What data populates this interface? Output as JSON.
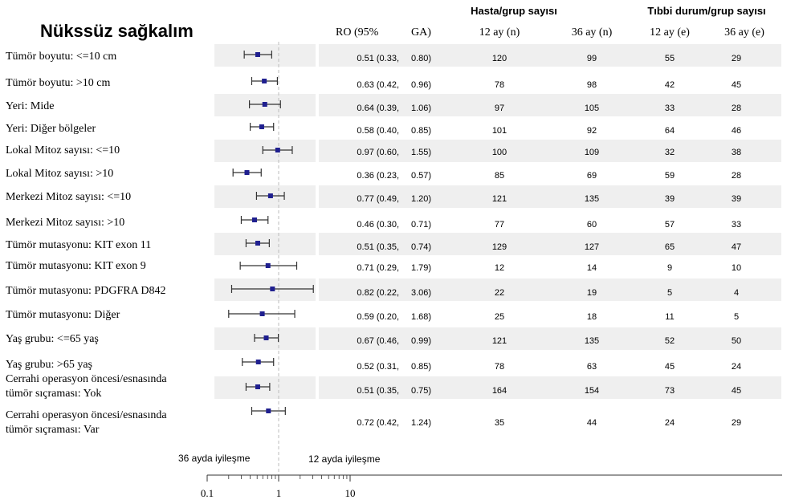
{
  "chart_data": {
    "type": "forest",
    "title": "Nükssüz sağkalım",
    "x_scale": "log",
    "xlim": [
      0.1,
      10
    ],
    "x_ticks": [
      "0.1",
      "1",
      "10"
    ],
    "reference_line": 1,
    "grid": false,
    "annotations": {
      "left": "36 ayda iyileşme",
      "right": "12 ayda iyileşme"
    },
    "headers": {
      "ro": "RO (95%",
      "ga": "GA)",
      "group_hasta": "Hasta/grup sayısı",
      "group_tibbi": "Tıbbi durum/grup sayısı",
      "n12": "12 ay (n)",
      "n36": "36 ay (n)",
      "e12": "12 ay (e)",
      "e36": "36 ay (e)"
    },
    "rows": [
      {
        "label": [
          "Tümör boyutu: <=10 cm"
        ],
        "ro": 0.51,
        "lo": 0.33,
        "hi": 0.8,
        "ro_text": "0.51 (0.33,",
        "hi_text": "0.80)",
        "n12": "120",
        "n36": "99",
        "e12": "55",
        "e36": "29"
      },
      {
        "label": [
          "Tümör boyutu: >10 cm"
        ],
        "ro": 0.63,
        "lo": 0.42,
        "hi": 0.96,
        "ro_text": "0.63 (0.42,",
        "hi_text": "0.96)",
        "n12": "78",
        "n36": "98",
        "e12": "42",
        "e36": "45"
      },
      {
        "label": [
          "Yeri: Mide"
        ],
        "ro": 0.64,
        "lo": 0.39,
        "hi": 1.06,
        "ro_text": "0.64 (0.39,",
        "hi_text": "1.06)",
        "n12": "97",
        "n36": "105",
        "e12": "33",
        "e36": "28"
      },
      {
        "label": [
          "Yeri: Diğer bölgeler"
        ],
        "ro": 0.58,
        "lo": 0.4,
        "hi": 0.85,
        "ro_text": "0.58 (0.40,",
        "hi_text": "0.85)",
        "n12": "101",
        "n36": "92",
        "e12": "64",
        "e36": "46"
      },
      {
        "label": [
          "Lokal Mitoz sayısı: <=10"
        ],
        "ro": 0.97,
        "lo": 0.6,
        "hi": 1.55,
        "ro_text": "0.97 (0.60,",
        "hi_text": "1.55)",
        "n12": "100",
        "n36": "109",
        "e12": "32",
        "e36": "38"
      },
      {
        "label": [
          "Lokal Mitoz sayısı: >10"
        ],
        "ro": 0.36,
        "lo": 0.23,
        "hi": 0.57,
        "ro_text": "0.36 (0.23,",
        "hi_text": "0.57)",
        "n12": "85",
        "n36": "69",
        "e12": "59",
        "e36": "28"
      },
      {
        "label": [
          "Merkezi Mitoz sayısı: <=10"
        ],
        "ro": 0.77,
        "lo": 0.49,
        "hi": 1.2,
        "ro_text": "0.77 (0.49,",
        "hi_text": "1.20)",
        "n12": "121",
        "n36": "135",
        "e12": "39",
        "e36": "39"
      },
      {
        "label": [
          "Merkezi Mitoz sayısı: >10"
        ],
        "ro": 0.46,
        "lo": 0.3,
        "hi": 0.71,
        "ro_text": "0.46 (0.30,",
        "hi_text": "0.71)",
        "n12": "77",
        "n36": "60",
        "e12": "57",
        "e36": "33"
      },
      {
        "label": [
          "Tümör mutasyonu: KIT exon 11"
        ],
        "ro": 0.51,
        "lo": 0.35,
        "hi": 0.74,
        "ro_text": "0.51 (0.35,",
        "hi_text": "0.74)",
        "n12": "129",
        "n36": "127",
        "e12": "65",
        "e36": "47"
      },
      {
        "label": [
          "Tümör mutasyonu: KIT exon 9"
        ],
        "ro": 0.71,
        "lo": 0.29,
        "hi": 1.79,
        "ro_text": "0.71 (0.29,",
        "hi_text": "1.79)",
        "n12": "12",
        "n36": "14",
        "e12": "9",
        "e36": "10"
      },
      {
        "label": [
          "Tümör mutasyonu: PDGFRA D842"
        ],
        "ro": 0.82,
        "lo": 0.22,
        "hi": 3.06,
        "ro_text": "0.82 (0.22,",
        "hi_text": "3.06)",
        "n12": "22",
        "n36": "19",
        "e12": "5",
        "e36": "4"
      },
      {
        "label": [
          "Tümör mutasyonu: Diğer"
        ],
        "ro": 0.59,
        "lo": 0.2,
        "hi": 1.68,
        "ro_text": "0.59 (0.20,",
        "hi_text": "1.68)",
        "n12": "25",
        "n36": "18",
        "e12": "11",
        "e36": "5"
      },
      {
        "label": [
          "Yaş grubu: <=65 yaş"
        ],
        "ro": 0.67,
        "lo": 0.46,
        "hi": 0.99,
        "ro_text": "0.67 (0.46,",
        "hi_text": "0.99)",
        "n12": "121",
        "n36": "135",
        "e12": "52",
        "e36": "50"
      },
      {
        "label": [
          "Yaş grubu: >65 yaş"
        ],
        "ro": 0.52,
        "lo": 0.31,
        "hi": 0.85,
        "ro_text": "0.52 (0.31,",
        "hi_text": "0.85)",
        "n12": "78",
        "n36": "63",
        "e12": "45",
        "e36": "24"
      },
      {
        "label": [
          "Cerrahi operasyon öncesi/esnasında",
          "tümör sıçraması: Yok"
        ],
        "ro": 0.51,
        "lo": 0.35,
        "hi": 0.75,
        "ro_text": "0.51 (0.35,",
        "hi_text": "0.75)",
        "n12": "164",
        "n36": "154",
        "e12": "73",
        "e36": "45"
      },
      {
        "label": [
          "Cerrahi operasyon öncesi/esnasında",
          "tümör sıçraması: Var"
        ],
        "ro": 0.72,
        "lo": 0.42,
        "hi": 1.24,
        "ro_text": "0.72 (0.42,",
        "hi_text": "1.24)",
        "n12": "35",
        "n36": "44",
        "e12": "24",
        "e36": "29"
      }
    ],
    "colors": {
      "marker": "#1f1f8f",
      "shade": "#efefef",
      "ci_line": "#333333",
      "ref_line": "#bdbdbd"
    }
  }
}
